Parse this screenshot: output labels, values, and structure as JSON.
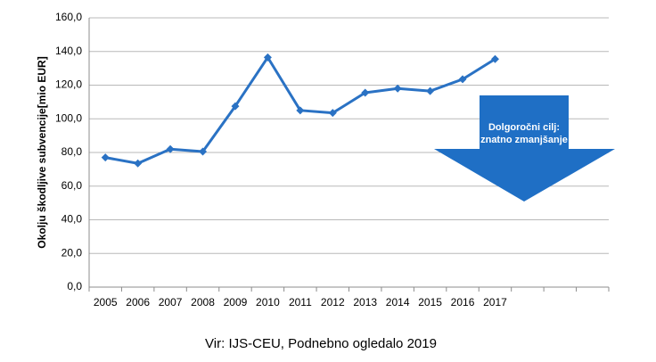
{
  "chart_data": {
    "type": "line",
    "y_label": "Okolju škodljive subvencije[mio EUR]",
    "source": "Vir: IJS-CEU, Podnebno ogledalo 2019",
    "annotation": [
      "Dolgoročni cilj:",
      "znatno zmanjšanje"
    ],
    "categories": [
      "2005",
      "2006",
      "2007",
      "2008",
      "2009",
      "2010",
      "2011",
      "2012",
      "2013",
      "2014",
      "2015",
      "2016",
      "2017",
      null,
      null,
      null
    ],
    "values": [
      77,
      73.5,
      82,
      80.5,
      107.5,
      136.5,
      105,
      103.5,
      115.5,
      118,
      116.5,
      123.5,
      135.5,
      null,
      null,
      null
    ],
    "color": "#2a72c4",
    "ylim": [
      0,
      160
    ],
    "yticks": [
      {
        "value": 0,
        "label": "0,0"
      },
      {
        "value": 20,
        "label": "20,0"
      },
      {
        "value": 40,
        "label": "40,0"
      },
      {
        "value": 60,
        "label": "60,0"
      },
      {
        "value": 80,
        "label": "80,0"
      },
      {
        "value": 100,
        "label": "100,0"
      },
      {
        "value": 120,
        "label": "120,0"
      },
      {
        "value": 140,
        "label": "140,0"
      },
      {
        "value": 160,
        "label": "160,0"
      }
    ],
    "grid": true
  }
}
